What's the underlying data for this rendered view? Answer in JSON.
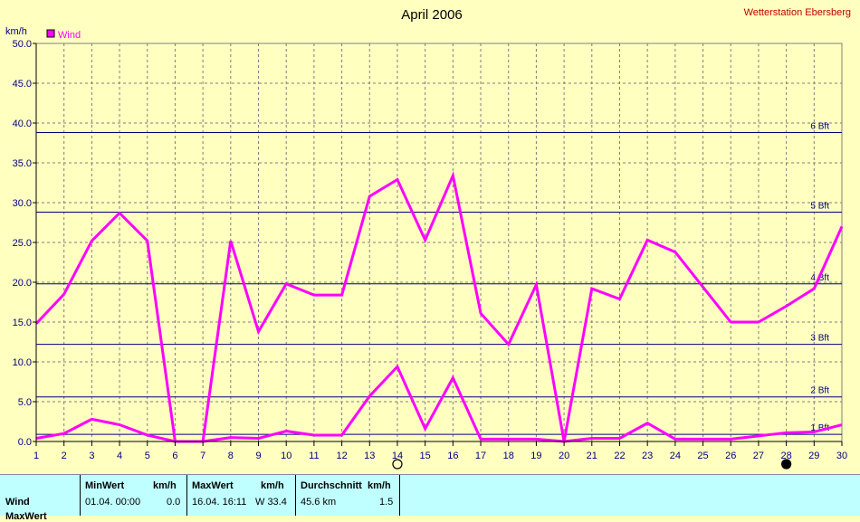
{
  "header": {
    "title": "April 2006",
    "station": "Wetterstation Ebersberg"
  },
  "chart_data": {
    "type": "line",
    "title": "April 2006",
    "ylabel": "km/h",
    "xlabel": "",
    "ylim": [
      0,
      50
    ],
    "xlim": [
      1,
      30
    ],
    "grid": true,
    "legend_position": "top-left",
    "x_ticks": [
      "1",
      "2",
      "3",
      "4",
      "5",
      "6",
      "7",
      "8",
      "9",
      "10",
      "11",
      "12",
      "13",
      "14",
      "15",
      "16",
      "17",
      "18",
      "19",
      "20",
      "21",
      "22",
      "23",
      "24",
      "25",
      "26",
      "27",
      "28",
      "29",
      "30"
    ],
    "y_ticks": [
      "0.0",
      "5.0",
      "10.0",
      "15.0",
      "20.0",
      "25.0",
      "30.0",
      "35.0",
      "40.0",
      "45.0",
      "50.0"
    ],
    "series": [
      {
        "name": "Wind",
        "role": "daily maximum",
        "color": "#ff00ff",
        "x": [
          1,
          2,
          3,
          4,
          5,
          6,
          7,
          8,
          9,
          10,
          11,
          12,
          13,
          14,
          15,
          16,
          17,
          18,
          19,
          20,
          21,
          22,
          23,
          24,
          25,
          26,
          27,
          28,
          29,
          30
        ],
        "values": [
          14.8,
          18.5,
          25.2,
          28.7,
          25.2,
          0.0,
          0.0,
          25.2,
          13.8,
          19.8,
          18.4,
          18.4,
          30.8,
          32.9,
          25.3,
          33.4,
          16.1,
          12.2,
          19.7,
          0.0,
          19.2,
          17.9,
          25.3,
          23.8,
          19.4,
          15.0,
          15.0,
          17.0,
          19.2,
          27.0
        ]
      },
      {
        "name": "",
        "role": "daily average",
        "color": "#ff00ff",
        "x": [
          1,
          2,
          3,
          4,
          5,
          6,
          7,
          8,
          9,
          10,
          11,
          12,
          13,
          14,
          15,
          16,
          17,
          18,
          19,
          20,
          21,
          22,
          23,
          24,
          25,
          26,
          27,
          28,
          29,
          30
        ],
        "values": [
          0.4,
          1.0,
          2.8,
          2.1,
          0.8,
          0.0,
          0.0,
          0.5,
          0.4,
          1.3,
          0.8,
          0.8,
          5.7,
          9.4,
          1.6,
          8.0,
          0.3,
          0.3,
          0.3,
          0.0,
          0.4,
          0.4,
          2.3,
          0.3,
          0.3,
          0.3,
          0.7,
          1.1,
          1.2,
          2.1
        ]
      }
    ],
    "reference_lines": [
      {
        "label": "1 Bft",
        "value": 0.9
      },
      {
        "label": "2 Bft",
        "value": 5.6
      },
      {
        "label": "3 Bft",
        "value": 12.2
      },
      {
        "label": "4 Bft",
        "value": 19.8
      },
      {
        "label": "5 Bft",
        "value": 28.8
      },
      {
        "label": "6 Bft",
        "value": 38.8
      }
    ],
    "reference_line_color": "#000080",
    "moon_markers": [
      {
        "day": 14,
        "phase": "full-moon"
      },
      {
        "day": 28,
        "phase": "new-moon"
      }
    ]
  },
  "stats_table": {
    "headers": {
      "min": "MinWert",
      "min_unit": "km/h",
      "max": "MaxWert",
      "max_unit": "km/h",
      "avg": "Durchschnitt",
      "avg_unit": "km/h"
    },
    "rows": [
      {
        "label": "Wind",
        "min_time": "01.04.  00:00",
        "min_value": "0.0",
        "max_time": "16.04.  16:11",
        "max_value": "W 33.4",
        "avg_extra": "45.6 km",
        "avg_value": "1.5"
      }
    ],
    "second_row_label_partial": "MaxWert"
  }
}
